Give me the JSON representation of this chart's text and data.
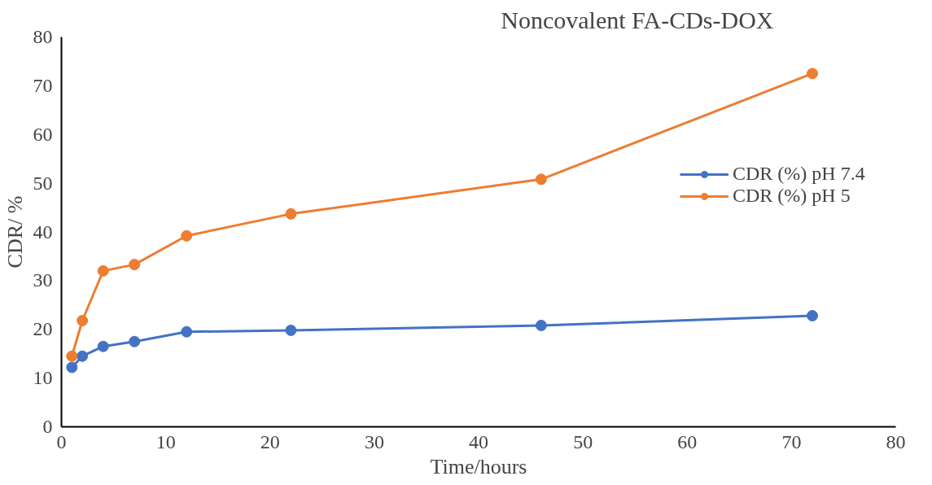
{
  "chart_data": {
    "type": "line",
    "title": "Noncovalent FA-CDs-DOX",
    "xlabel": "Time/hours",
    "ylabel": "CDR/ %",
    "x": [
      1,
      2,
      4,
      7,
      12,
      22,
      46,
      72
    ],
    "series": [
      {
        "name": "CDR (%) pH 7.4",
        "color": "#4472c4",
        "values": [
          12.2,
          14.5,
          16.5,
          17.5,
          19.5,
          19.8,
          20.8,
          22.8
        ]
      },
      {
        "name": "CDR (%) pH 5",
        "color": "#ed7d31",
        "values": [
          14.5,
          21.8,
          32,
          33.3,
          39.2,
          43.7,
          50.8,
          72.5
        ]
      }
    ],
    "xlim": [
      0,
      80
    ],
    "xticks": [
      0,
      10,
      20,
      30,
      40,
      50,
      60,
      70,
      80
    ],
    "ylim": [
      0,
      80
    ],
    "yticks": [
      0,
      10,
      20,
      30,
      40,
      50,
      60,
      70,
      80
    ],
    "grid": false,
    "legend": "right",
    "marker": "circle",
    "line_style": "solid"
  }
}
